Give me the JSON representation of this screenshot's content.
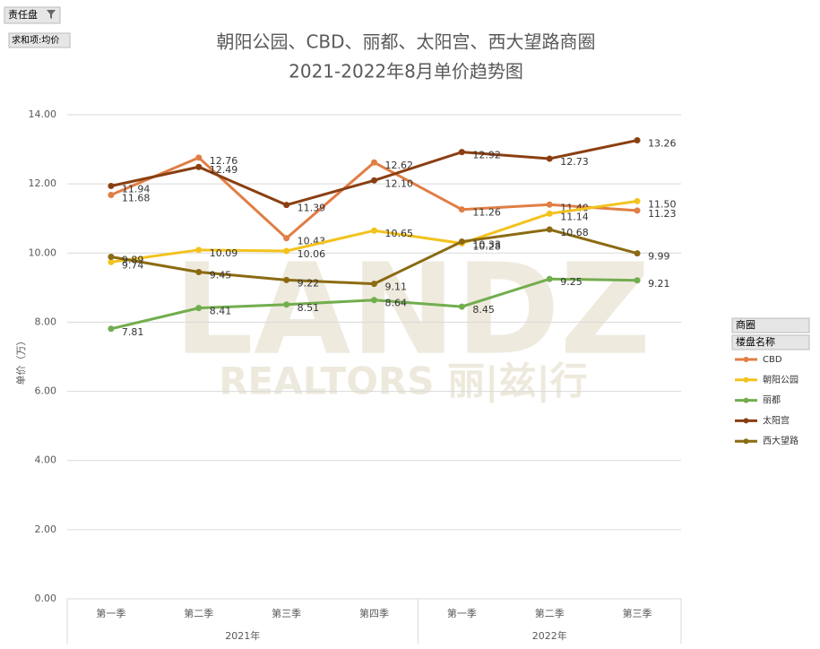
{
  "chart_data": {
    "type": "line",
    "title": [
      "朝阳公园、CBD、丽都、太阳宫、西大望路商圈",
      "2021-2022年8月单价趋势图"
    ],
    "y_label": "单价（万）",
    "categories": [
      "第一季",
      "第二季",
      "第三季",
      "第四季",
      "第一季",
      "第二季",
      "第三季"
    ],
    "category_groups": [
      {
        "label": "2021年",
        "size": 4
      },
      {
        "label": "2022年",
        "size": 3
      }
    ],
    "ylim": [
      0,
      14
    ],
    "yticks": [
      {
        "value": 0,
        "label": "0.00"
      },
      {
        "value": 2,
        "label": "2.00"
      },
      {
        "value": 4,
        "label": "4.00"
      },
      {
        "value": 6,
        "label": "6.00"
      },
      {
        "value": 8,
        "label": "8.00"
      },
      {
        "value": 10,
        "label": "10.00"
      },
      {
        "value": 12,
        "label": "12.00"
      },
      {
        "value": 14,
        "label": "14.00"
      }
    ],
    "grid": true,
    "legend_title": [
      "商圈",
      "楼盘名称"
    ],
    "series": [
      {
        "name": "CBD",
        "color": "#e07e45",
        "values": [
          11.68,
          12.76,
          10.43,
          12.62,
          11.26,
          11.4,
          11.23
        ],
        "value_labels": [
          "11.68",
          "12.76",
          "10.43",
          "12.62",
          "11.26",
          "11.40",
          "11.23"
        ]
      },
      {
        "name": "朝阳公园",
        "color": "#f3c21d",
        "values": [
          9.74,
          10.09,
          10.06,
          10.65,
          10.28,
          11.14,
          11.5
        ],
        "value_labels": [
          "9.74",
          "10.09",
          "10.06",
          "10.65",
          "10.28",
          "11.14",
          "11.50"
        ]
      },
      {
        "name": "丽都",
        "color": "#72ad4e",
        "values": [
          7.81,
          8.41,
          8.51,
          8.64,
          8.45,
          9.25,
          9.21
        ],
        "value_labels": [
          "7.81",
          "8.41",
          "8.51",
          "8.64",
          "8.45",
          "9.25",
          "9.21"
        ]
      },
      {
        "name": "太阳宫",
        "color": "#8a3f12",
        "values": [
          11.94,
          12.49,
          11.39,
          12.1,
          12.92,
          12.73,
          13.26
        ],
        "value_labels": [
          "11.94",
          "12.49",
          "11.39",
          "12.10",
          "12.92",
          "12.73",
          "13.26"
        ]
      },
      {
        "name": "西大望路",
        "color": "#8b6a12",
        "values": [
          9.89,
          9.45,
          9.22,
          9.11,
          10.33,
          10.68,
          9.99
        ],
        "value_labels": [
          "9.89",
          "9.45",
          "9.22",
          "9.11",
          "10.33",
          "10.68",
          "9.99"
        ]
      }
    ]
  },
  "controls": {
    "filter": "责任盘",
    "measure": "求和项:均价"
  },
  "watermark": [
    "LANDZ",
    "REALTORS 丽|兹|行"
  ]
}
